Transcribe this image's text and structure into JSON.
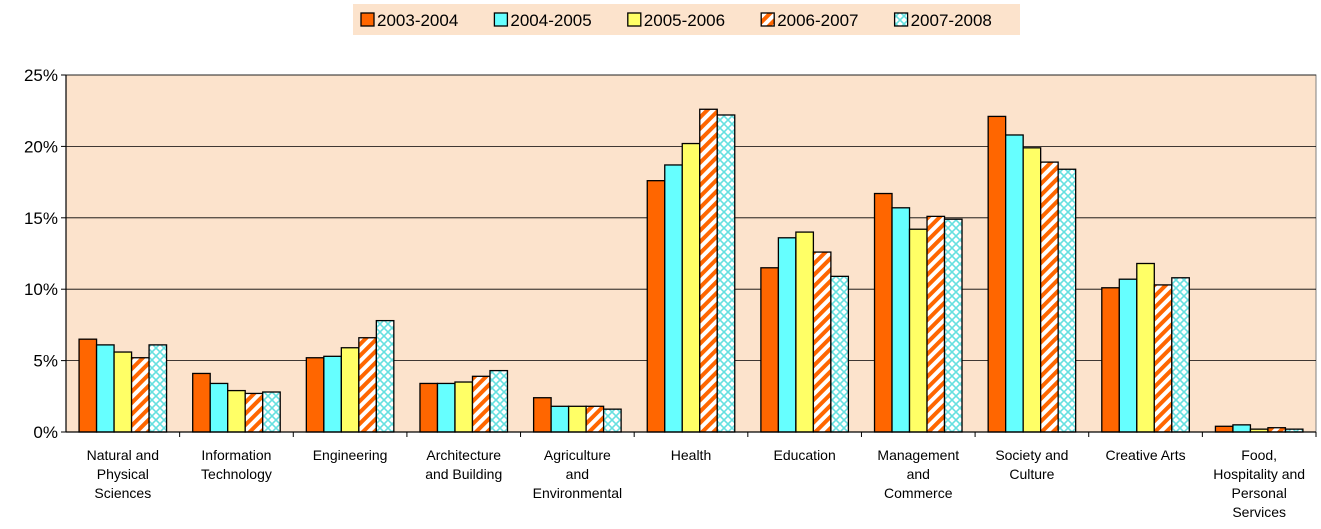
{
  "chart_data": {
    "type": "bar",
    "title": "",
    "xlabel": "",
    "ylabel": "",
    "ylim": [
      0,
      25
    ],
    "y_ticks": [
      "0%",
      "5%",
      "10%",
      "15%",
      "20%",
      "25%"
    ],
    "y_tick_values": [
      0,
      5,
      10,
      15,
      20,
      25
    ],
    "grid": true,
    "legend_position": "top-center",
    "plot_background": "#FCE3CC",
    "categories": [
      [
        "Natural and",
        "Physical",
        "Sciences"
      ],
      [
        "Information",
        "Technology"
      ],
      [
        "Engineering"
      ],
      [
        "Architecture",
        "and Building"
      ],
      [
        "Agriculture",
        "and",
        "Environmental"
      ],
      [
        "Health"
      ],
      [
        "Education"
      ],
      [
        "Management",
        "and",
        "Commerce"
      ],
      [
        "Society and",
        "Culture"
      ],
      [
        "Creative Arts"
      ],
      [
        "Food,",
        "Hospitality and",
        "Personal",
        "Services"
      ]
    ],
    "series": [
      {
        "name": "2003-2004",
        "color": "#FF6600",
        "pattern": "solid",
        "values": [
          6.5,
          4.1,
          5.2,
          3.4,
          2.4,
          17.6,
          11.5,
          16.7,
          22.1,
          10.1,
          0.4
        ]
      },
      {
        "name": "2004-2005",
        "color": "#66FFFF",
        "pattern": "solid",
        "values": [
          6.1,
          3.4,
          5.3,
          3.4,
          1.8,
          18.7,
          13.6,
          15.7,
          20.8,
          10.7,
          0.5
        ]
      },
      {
        "name": "2005-2006",
        "color": "#FFFF66",
        "pattern": "solid",
        "values": [
          5.6,
          2.9,
          5.9,
          3.5,
          1.8,
          20.2,
          14.0,
          14.2,
          19.9,
          11.8,
          0.2
        ]
      },
      {
        "name": "2006-2007",
        "color": "#FF6600",
        "pattern": "diagonal-stripes",
        "values": [
          5.2,
          2.7,
          6.6,
          3.9,
          1.8,
          22.6,
          12.6,
          15.1,
          18.9,
          10.3,
          0.3
        ]
      },
      {
        "name": "2007-2008",
        "color": "#99FFFF",
        "pattern": "crosshatch",
        "values": [
          6.1,
          2.8,
          7.8,
          4.3,
          1.6,
          22.2,
          10.9,
          14.9,
          18.4,
          10.8,
          0.2
        ]
      }
    ]
  }
}
